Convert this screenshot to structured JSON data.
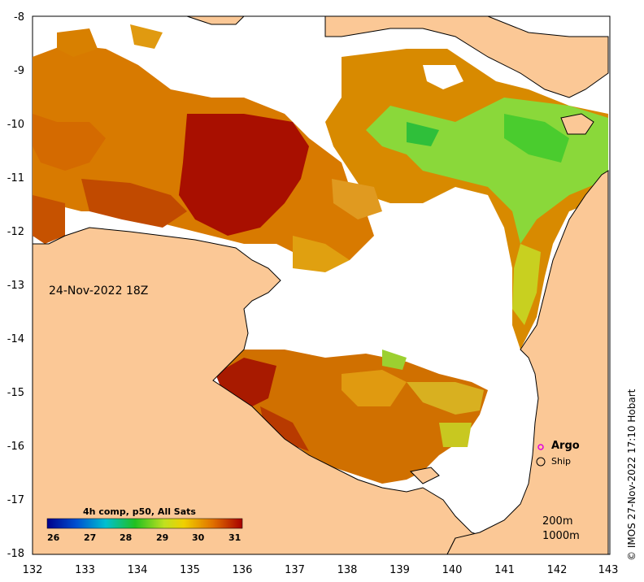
{
  "map": {
    "date": "24-Nov-2022 18Z",
    "colorbar_title": "4h comp, p50, All Sats",
    "colorbar_ticks": [
      "26",
      "27",
      "28",
      "29",
      "30",
      "31"
    ],
    "legend": {
      "argo": "Argo",
      "ship": "Ship"
    },
    "depth_labels": [
      "200m",
      "1000m"
    ],
    "credit": "© IMOS 27-Nov-2022 17:10 Hobart",
    "x_ticks": [
      "132",
      "133",
      "134",
      "135",
      "136",
      "137",
      "138",
      "139",
      "140",
      "141",
      "142",
      "143"
    ],
    "y_ticks": [
      "-8",
      "-9",
      "-10",
      "-11",
      "-12",
      "-13",
      "-14",
      "-15",
      "-16",
      "-17",
      "-18"
    ],
    "colors": {
      "land": "#fbc896",
      "cloud": "#ffffff",
      "sst_warm": "#a80f00",
      "sst_mid": "#d87a00",
      "sst_cool": "#7ed93a",
      "argo_marker": "#e000e0"
    }
  }
}
